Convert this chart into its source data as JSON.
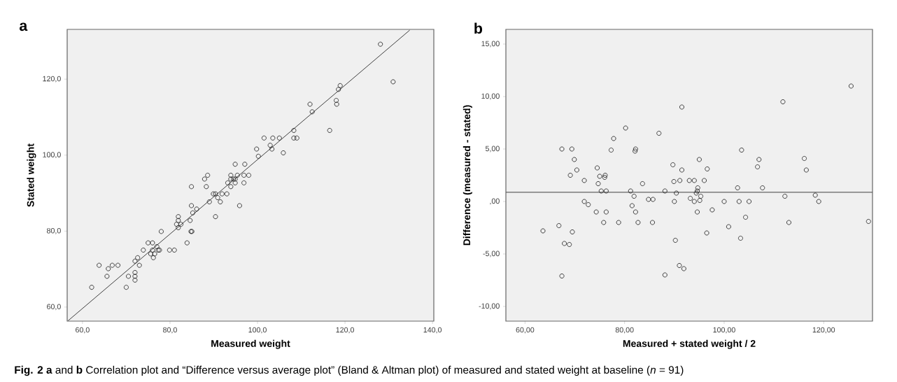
{
  "chart_data": [
    {
      "type": "scatter",
      "title": "a",
      "xlabel": "Measured weight",
      "ylabel": "Stated weight",
      "marker": "circle",
      "xlim": [
        56.5,
        140.3
      ],
      "ylim": [
        56.3,
        133.1
      ],
      "xticks": [
        {
          "value": 60,
          "label": "60,0"
        },
        {
          "value": 80,
          "label": "80,0"
        },
        {
          "value": 100,
          "label": "100,0"
        },
        {
          "value": 120,
          "label": "120,0"
        },
        {
          "value": 140,
          "label": "140,0"
        }
      ],
      "yticks": [
        {
          "value": 60,
          "label": "60,0"
        },
        {
          "value": 80,
          "label": "80,0"
        },
        {
          "value": 100,
          "label": "100,0"
        },
        {
          "value": 120,
          "label": "120,0"
        }
      ],
      "series": [
        {
          "color": "#1a1a1a",
          "x": [
            62.1,
            63.8,
            65.6,
            65.9,
            66.8,
            68.1,
            70.0,
            70.5,
            72.0,
            72.0,
            72.0,
            72.0,
            72.6,
            73.0,
            73.9,
            75.0,
            76.0,
            75.6,
            76.0,
            76.2,
            76.5,
            77.0,
            77.3,
            77.6,
            78.0,
            79.9,
            81.0,
            81.9,
            81.9,
            81.5,
            81.9,
            82.5,
            83.9,
            84.6,
            84.8,
            85.0,
            84.9,
            84.9,
            85.2,
            86.1,
            87.9,
            88.6,
            88.3,
            89.0,
            89.9,
            90.4,
            90.4,
            90.9,
            91.5,
            91.9,
            93.0,
            93.2,
            93.9,
            93.9,
            93.9,
            94.5,
            94.9,
            94.9,
            94.9,
            95.4,
            95.9,
            96.9,
            96.9,
            97.1,
            98.0,
            99.8,
            100.2,
            101.5,
            102.9,
            103.3,
            103.5,
            105.0,
            105.9,
            108.3,
            108.3,
            109.0,
            112.0,
            112.5,
            116.5,
            118.0,
            118.1,
            118.5,
            118.9,
            128.1,
            131.0
          ],
          "values": [
            65.2,
            71.0,
            68.1,
            70.1,
            71.0,
            71.0,
            65.2,
            68.1,
            72.1,
            69.1,
            68.1,
            67.1,
            73.0,
            71.0,
            75.0,
            76.9,
            76.9,
            74.0,
            75.0,
            73.0,
            74.0,
            75.9,
            75.0,
            75.0,
            79.9,
            75.0,
            75.0,
            83.8,
            82.8,
            81.8,
            80.9,
            81.8,
            76.9,
            82.8,
            79.9,
            79.9,
            86.7,
            91.7,
            84.8,
            85.8,
            93.7,
            94.7,
            91.7,
            87.7,
            89.8,
            89.8,
            83.8,
            88.8,
            87.7,
            89.8,
            89.8,
            92.7,
            94.7,
            93.7,
            91.7,
            93.7,
            92.7,
            97.6,
            93.7,
            94.7,
            86.7,
            94.7,
            92.7,
            97.6,
            94.7,
            101.6,
            99.7,
            104.5,
            102.6,
            101.6,
            104.5,
            104.5,
            100.6,
            106.5,
            104.5,
            104.5,
            113.4,
            111.4,
            106.5,
            114.4,
            113.4,
            117.3,
            118.3,
            129.2,
            119.3
          ]
        },
        {
          "type": "line",
          "marker": "none",
          "color": "#333333",
          "x": [
            56.7,
            134.8
          ],
          "values": [
            56.4,
            132.9
          ]
        }
      ],
      "annotations": [
        "**Fig. 2** **a** and **b** Correlation plot and “Difference versus average plot” (Bland & Altman plot) of measured and stated weight at baseline (*n* = 91)"
      ]
    },
    {
      "type": "scatter",
      "title": "b",
      "xlabel": "Measured + stated weight / 2",
      "ylabel": "Difference (measured - stated)",
      "marker": "circle",
      "xlim": [
        56.15,
        129.8
      ],
      "ylim": [
        -11.4,
        16.4
      ],
      "xticks": [
        {
          "value": 60,
          "label": "60,00"
        },
        {
          "value": 80,
          "label": "80,00"
        },
        {
          "value": 100,
          "label": "100,00"
        },
        {
          "value": 120,
          "label": "120,00"
        }
      ],
      "yticks": [
        {
          "value": -10,
          "label": "-10,00"
        },
        {
          "value": -5,
          "label": "-5,00"
        },
        {
          "value": 0,
          "label": ",00"
        },
        {
          "value": 5,
          "label": "5,00"
        },
        {
          "value": 10,
          "label": "10,00"
        },
        {
          "value": 15,
          "label": "15,00"
        }
      ],
      "series": [
        {
          "color": "#1a1a1a",
          "x": [
            63.6,
            66.8,
            67.4,
            67.4,
            67.9,
            68.9,
            69.1,
            69.4,
            69.5,
            69.9,
            70.4,
            71.9,
            71.9,
            72.7,
            74.3,
            74.5,
            74.7,
            75.0,
            75.3,
            75.8,
            76.0,
            76.1,
            76.3,
            76.3,
            77.3,
            77.8,
            78.8,
            80.2,
            81.2,
            81.5,
            81.9,
            82.2,
            82.1,
            82.2,
            82.7,
            83.6,
            84.8,
            85.7,
            85.6,
            86.9,
            88.1,
            88.1,
            89.7,
            89.9,
            90.0,
            90.2,
            90.4,
            91.1,
            91.0,
            91.5,
            91.5,
            91.9,
            93.0,
            93.2,
            94.0,
            94.0,
            94.6,
            94.4,
            94.6,
            94.7,
            95.0,
            95.1,
            95.3,
            96.0,
            96.5,
            96.6,
            97.6,
            100.0,
            100.9,
            102.7,
            103.0,
            103.3,
            103.5,
            104.3,
            105.0,
            106.7,
            107.0,
            107.7,
            111.8,
            112.2,
            113.0,
            116.1,
            116.5,
            118.3,
            119.0,
            125.5,
            129.0
          ],
          "values": [
            -2.8,
            -2.3,
            5.0,
            -7.1,
            -4.0,
            -4.1,
            2.5,
            5.0,
            -2.9,
            4.0,
            3.0,
            2.0,
            0.0,
            -0.3,
            -1.0,
            3.2,
            1.7,
            2.4,
            1.0,
            -2.0,
            2.3,
            2.5,
            1.0,
            -1.0,
            4.9,
            6.0,
            -2.0,
            7.0,
            1.0,
            -0.4,
            0.5,
            5.0,
            4.8,
            -1.0,
            -2.0,
            1.7,
            0.2,
            0.2,
            -2.0,
            6.5,
            1.0,
            -7.0,
            3.5,
            1.9,
            0.0,
            -3.7,
            0.8,
            2.0,
            -6.1,
            9.0,
            3.0,
            -6.4,
            2.0,
            0.3,
            2.0,
            0.0,
            -1.0,
            0.8,
            1.0,
            1.3,
            4.0,
            0.1,
            0.5,
            2.0,
            -3.0,
            3.1,
            -0.8,
            0.0,
            -2.4,
            1.3,
            0.0,
            -3.5,
            4.9,
            -1.5,
            0.0,
            3.3,
            4.0,
            1.3,
            9.5,
            0.5,
            -2.0,
            4.1,
            3.0,
            0.6,
            0.0,
            11.0,
            -1.9
          ]
        }
      ],
      "ref_lines": [
        {
          "axis": "y",
          "value": 0.87,
          "color": "#555555"
        }
      ]
    }
  ]
}
